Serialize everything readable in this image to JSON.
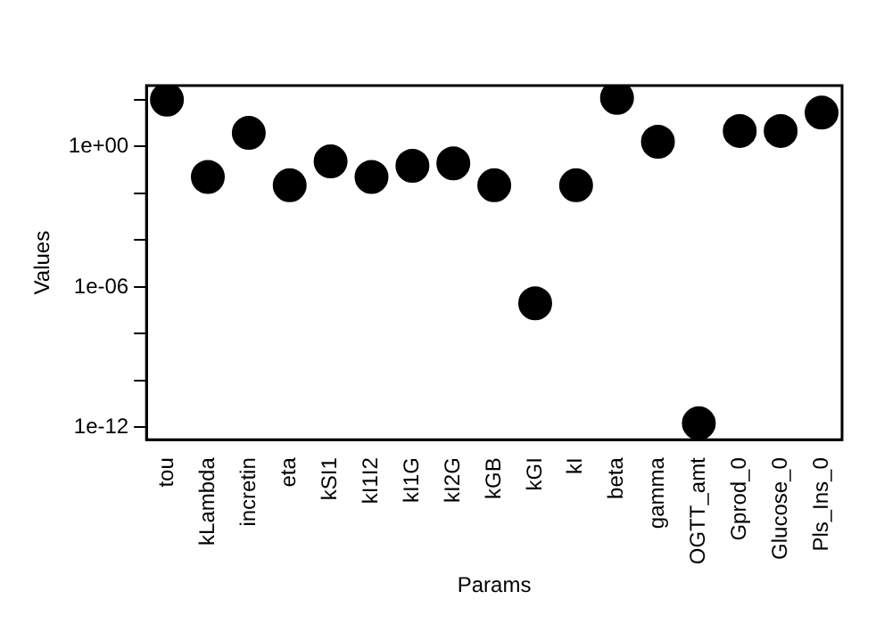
{
  "chart_data": {
    "type": "scatter",
    "xlabel": "Params",
    "ylabel": "Values",
    "categories": [
      "tou",
      "kLambda",
      "incretin",
      "eta",
      "kSI1",
      "kI1I2",
      "kI1G",
      "kI2G",
      "kGB",
      "kGI",
      "kI",
      "beta",
      "gamma",
      "OGTT_amt",
      "Gprod_0",
      "Glucose_0",
      "Pls_Ins_0"
    ],
    "values": [
      100,
      0.05,
      3.8,
      0.022,
      0.23,
      0.05,
      0.15,
      0.19,
      0.022,
      2e-07,
      0.022,
      120,
      1.6,
      1.5e-12,
      4.6,
      4.6,
      28
    ],
    "color": "#000000",
    "marker": "circle",
    "log": "y",
    "grid": false,
    "legend": false,
    "ylim": [
      3e-13,
      400
    ],
    "yticks": [
      {
        "value": 1e-12,
        "label": "1e-12"
      },
      {
        "value": 1e-10,
        "label": null
      },
      {
        "value": 1e-08,
        "label": null
      },
      {
        "value": 1e-06,
        "label": "1e-06"
      },
      {
        "value": 0.0001,
        "label": null
      },
      {
        "value": 0.01,
        "label": null
      },
      {
        "value": 1,
        "label": "1e+00"
      },
      {
        "value": 100,
        "label": null
      }
    ]
  }
}
